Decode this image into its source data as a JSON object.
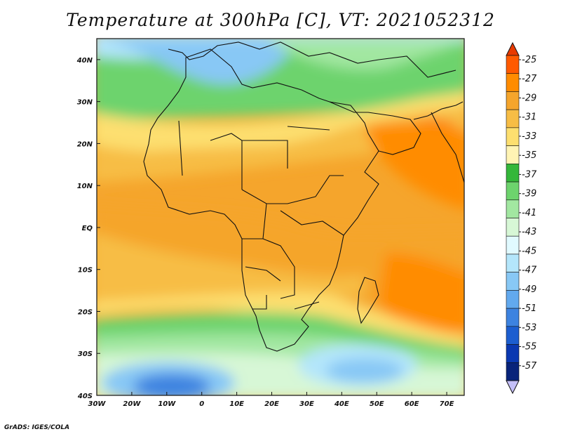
{
  "title": "Temperature at 300hPa [C], VT: 2021052312",
  "credit": "GrADS: IGES/COLA",
  "map": {
    "lon_range": [
      -30,
      75
    ],
    "lat_range": [
      -40,
      45
    ],
    "lat_ticks": [
      {
        "value": 40,
        "label": "40N"
      },
      {
        "value": 30,
        "label": "30N"
      },
      {
        "value": 20,
        "label": "20N"
      },
      {
        "value": 10,
        "label": "10N"
      },
      {
        "value": 0,
        "label": "EQ"
      },
      {
        "value": -10,
        "label": "10S"
      },
      {
        "value": -20,
        "label": "20S"
      },
      {
        "value": -30,
        "label": "30S"
      },
      {
        "value": -40,
        "label": "40S"
      }
    ],
    "lon_ticks": [
      {
        "value": -30,
        "label": "30W"
      },
      {
        "value": -20,
        "label": "20W"
      },
      {
        "value": -10,
        "label": "10W"
      },
      {
        "value": 0,
        "label": "0"
      },
      {
        "value": 10,
        "label": "10E"
      },
      {
        "value": 20,
        "label": "20E"
      },
      {
        "value": 30,
        "label": "30E"
      },
      {
        "value": 40,
        "label": "40E"
      },
      {
        "value": 50,
        "label": "50E"
      },
      {
        "value": 60,
        "label": "60E"
      },
      {
        "value": 70,
        "label": "70E"
      }
    ]
  },
  "colorbar": {
    "levels": [
      "-25",
      "-27",
      "-29",
      "-31",
      "-33",
      "-35",
      "-37",
      "-39",
      "-41",
      "-43",
      "-45",
      "-47",
      "-49",
      "-51",
      "-53",
      "-55",
      "-57"
    ],
    "colors": [
      "#ff5a00",
      "#ff8c00",
      "#f5a52c",
      "#f7bd45",
      "#fddf6f",
      "#fff4b4",
      "#34b73a",
      "#6dd36d",
      "#a2e7a1",
      "#d7f7d6",
      "#e1faff",
      "#b4e6fb",
      "#88c8f5",
      "#62a9ee",
      "#3d83e0",
      "#1c5ed0",
      "#0a38b1",
      "#08237a"
    ],
    "top_arrow_color": "#e83a00",
    "bottom_arrow_color": "#c4bff8"
  }
}
